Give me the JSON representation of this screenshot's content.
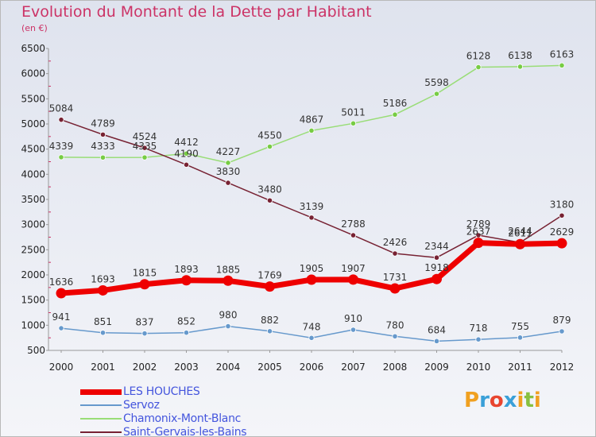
{
  "title": "Evolution du Montant de la Dette par Habitant",
  "subtitle": "(en €)",
  "logo_letters": [
    {
      "ch": "P",
      "color": "#f0a020"
    },
    {
      "ch": "r",
      "color": "#3aa0d8"
    },
    {
      "ch": "o",
      "color": "#e8452f"
    },
    {
      "ch": "x",
      "color": "#3aa0d8"
    },
    {
      "ch": "i",
      "color": "#f0a020"
    },
    {
      "ch": "t",
      "color": "#88c040"
    },
    {
      "ch": "i",
      "color": "#f0a020"
    }
  ],
  "chart_data": {
    "type": "line",
    "title": "Evolution du Montant de la Dette par Habitant",
    "ylabel": "(en €)",
    "x": [
      "2000",
      "2001",
      "2002",
      "2003",
      "2004",
      "2005",
      "2006",
      "2007",
      "2008",
      "2009",
      "2010",
      "2011",
      "2012"
    ],
    "ylim": [
      500,
      6500
    ],
    "yticks": [
      500,
      1000,
      1500,
      2000,
      2500,
      3000,
      3500,
      4000,
      4500,
      5000,
      5500,
      6000,
      6500
    ],
    "grid": false,
    "legend_position": "bottom-left",
    "series": [
      {
        "name": "LES HOUCHES",
        "color": "#ee0000",
        "marker": "#ee0000",
        "width": 7,
        "values": [
          1636,
          1693,
          1815,
          1893,
          1885,
          1769,
          1905,
          1907,
          1731,
          1918,
          2637,
          2611,
          2629
        ]
      },
      {
        "name": "Servoz",
        "color": "#6699cc",
        "marker": "#6699cc",
        "width": 1.5,
        "values": [
          941,
          851,
          837,
          852,
          980,
          882,
          748,
          910,
          780,
          684,
          718,
          755,
          879
        ]
      },
      {
        "name": "Chamonix-Mont-Blanc",
        "color": "#99dd77",
        "marker": "#77cc44",
        "width": 1.5,
        "values": [
          4339,
          4333,
          4335,
          4412,
          4227,
          4550,
          4867,
          5011,
          5186,
          5598,
          6128,
          6138,
          6163
        ]
      },
      {
        "name": "Saint-Gervais-les-Bains",
        "color": "#772233",
        "marker": "#772233",
        "width": 1.5,
        "values": [
          5084,
          4789,
          4524,
          4190,
          3830,
          3480,
          3139,
          2788,
          2426,
          2344,
          2789,
          2644,
          3180
        ]
      }
    ]
  }
}
